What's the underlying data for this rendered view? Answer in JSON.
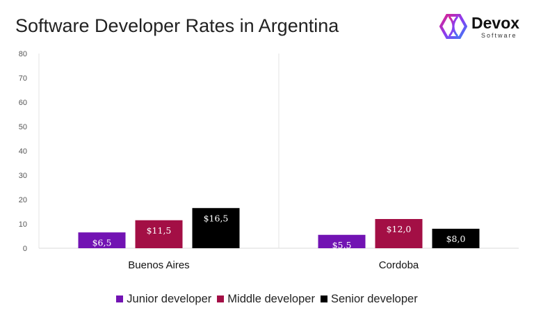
{
  "chart_data": {
    "type": "bar",
    "title": "Software Developer Rates in Argentina",
    "categories": [
      "Buenos Aires",
      "Cordoba"
    ],
    "series": [
      {
        "name": "Junior developer",
        "color": "#7213b3",
        "values": [
          6.5,
          5.5
        ],
        "labels": [
          "$6,5",
          "$5,5"
        ]
      },
      {
        "name": "Middle developer",
        "color": "#a30f45",
        "values": [
          11.5,
          12.0
        ],
        "labels": [
          "$11,5",
          "$12,0"
        ]
      },
      {
        "name": "Senior developer",
        "color": "#000000",
        "values": [
          16.5,
          8.0
        ],
        "labels": [
          "$16,5",
          "$8,0"
        ]
      }
    ],
    "ylim": [
      0,
      80
    ],
    "yticks": [
      0,
      10,
      20,
      30,
      40,
      50,
      60,
      70,
      80
    ],
    "grid": false,
    "legend": "bottom"
  },
  "logo": {
    "name": "Devox",
    "sub": "Software"
  }
}
